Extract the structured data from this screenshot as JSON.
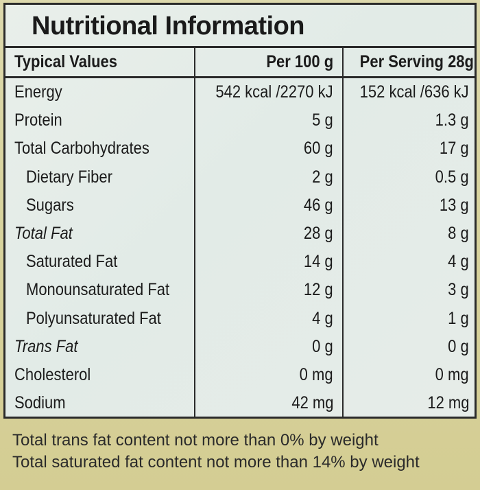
{
  "title": "Nutritional Information",
  "table": {
    "headers": {
      "label": "Typical Values",
      "per100": "Per 100 g",
      "per_serving": "Per Serving 28g"
    },
    "rows": [
      {
        "label": "Energy",
        "per100": "542 kcal /2270 kJ",
        "per_serving": "152 kcal /636 kJ",
        "indent": false,
        "italic": false
      },
      {
        "label": "Protein",
        "per100": "5 g",
        "per_serving": "1.3 g",
        "indent": false,
        "italic": false
      },
      {
        "label": "Total Carbohydrates",
        "per100": "60 g",
        "per_serving": "17 g",
        "indent": false,
        "italic": false
      },
      {
        "label": "Dietary Fiber",
        "per100": "2 g",
        "per_serving": "0.5 g",
        "indent": true,
        "italic": false
      },
      {
        "label": "Sugars",
        "per100": "46 g",
        "per_serving": "13 g",
        "indent": true,
        "italic": false
      },
      {
        "label": "Total Fat",
        "per100": "28 g",
        "per_serving": "8 g",
        "indent": false,
        "italic": true
      },
      {
        "label": "Saturated Fat",
        "per100": "14 g",
        "per_serving": "4 g",
        "indent": true,
        "italic": false
      },
      {
        "label": "Monounsaturated Fat",
        "per100": "12 g",
        "per_serving": "3 g",
        "indent": true,
        "italic": false
      },
      {
        "label": "Polyunsaturated Fat",
        "per100": "4 g",
        "per_serving": "1 g",
        "indent": true,
        "italic": false
      },
      {
        "label": "Trans Fat",
        "per100": "0 g",
        "per_serving": "0 g",
        "indent": false,
        "italic": true
      },
      {
        "label": "Cholesterol",
        "per100": "0 mg",
        "per_serving": "0 mg",
        "indent": false,
        "italic": false
      },
      {
        "label": "Sodium",
        "per100": "42 mg",
        "per_serving": "12 mg",
        "indent": false,
        "italic": false
      }
    ]
  },
  "footer": {
    "line1": "Total trans fat content not more than 0% by weight",
    "line2": "Total saturated fat content not more than 14% by weight"
  }
}
